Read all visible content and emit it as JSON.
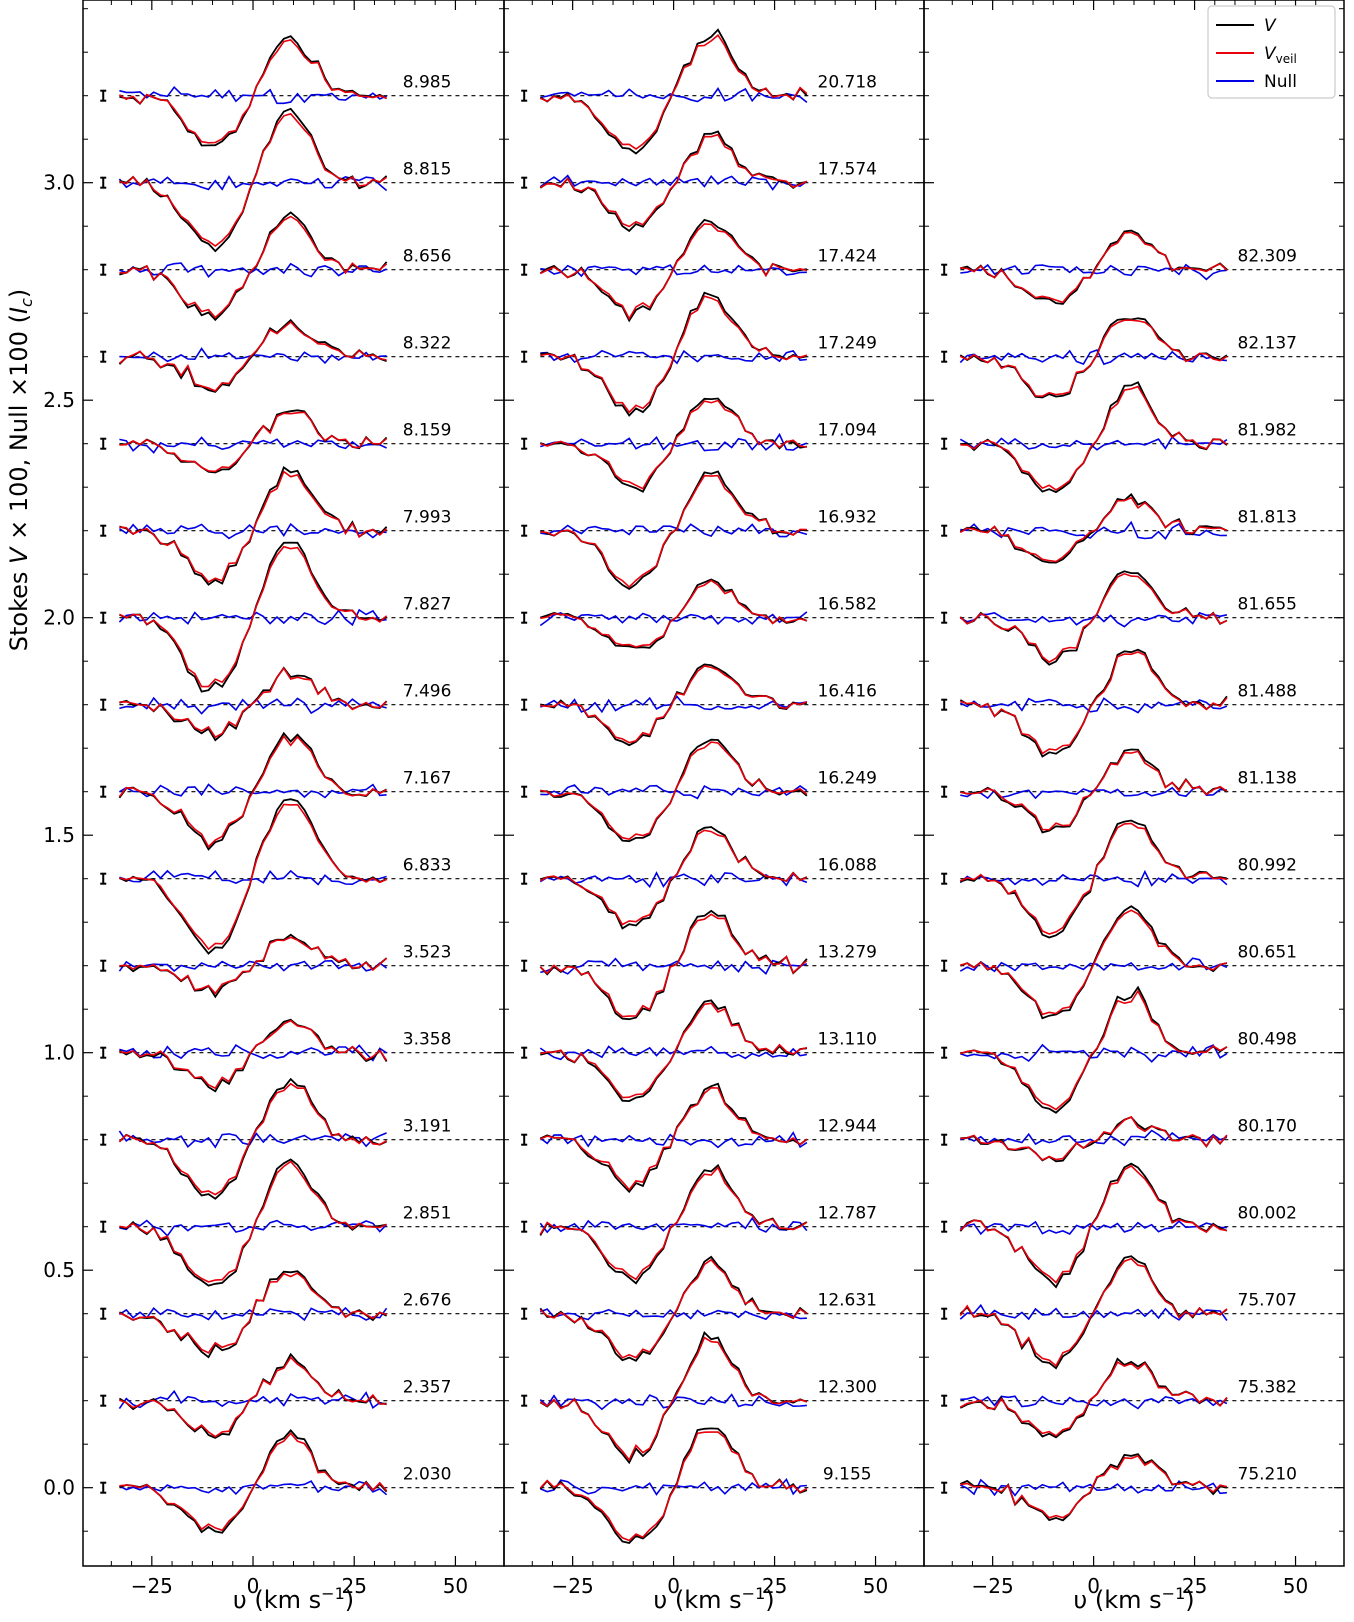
{
  "chart_data": {
    "type": "line",
    "ylabel": "Stokes V × 100, Null ×100 (I_c)",
    "ylabel_parts": {
      "pre": "Stokes ",
      "v": "V",
      "mid": " × 100, Null ×100 (",
      "ic": "I",
      "icsub": "c",
      "post": ")"
    },
    "xlabel": "υ (km s⁻¹)",
    "xlabel_parts": {
      "pre": "υ (km s",
      "sup": "−1",
      "post": ")"
    },
    "x_ticks": [
      -25,
      0,
      25,
      50
    ],
    "x_tick_labels": [
      "−25",
      "0",
      "25",
      "50"
    ],
    "y_ticks": [
      0.0,
      0.5,
      1.0,
      1.5,
      2.0,
      2.5,
      3.0
    ],
    "y_tick_labels": [
      "0.0",
      "0.5",
      "1.0",
      "1.5",
      "2.0",
      "2.5",
      "3.0"
    ],
    "xlim": [
      -42,
      62
    ],
    "ylim": [
      -0.18,
      3.42
    ],
    "offset_step": 0.2,
    "velocity_range": [
      -33,
      33
    ],
    "legend": {
      "placement": "top-right",
      "entries": [
        {
          "label": "V",
          "color": "#000000"
        },
        {
          "label": "V_veil",
          "label_main": "V",
          "label_sub": "veil",
          "color": "#e8000b"
        },
        {
          "label": "Null",
          "color": "#0000e6"
        }
      ]
    },
    "colors": {
      "V": "#000000",
      "V_veil": "#e8000b",
      "Null": "#0000e6"
    },
    "panels": [
      {
        "labels": [
          "2.030",
          "2.357",
          "2.676",
          "2.851",
          "3.191",
          "3.358",
          "3.523",
          "6.833",
          "7.167",
          "7.496",
          "7.827",
          "7.993",
          "8.159",
          "8.322",
          "8.656",
          "8.815",
          "8.985"
        ],
        "amplitudes": [
          0.11,
          0.08,
          0.09,
          0.14,
          0.13,
          0.07,
          0.06,
          0.17,
          0.12,
          0.07,
          0.17,
          0.12,
          0.07,
          0.07,
          0.11,
          0.15,
          0.12
        ],
        "start_index": 0
      },
      {
        "labels": [
          "9.155",
          "12.300",
          "12.631",
          "12.787",
          "12.944",
          "13.110",
          "13.279",
          "16.088",
          "16.249",
          "16.416",
          "16.582",
          "16.932",
          "17.094",
          "17.249",
          "17.424",
          "17.574",
          "20.718"
        ],
        "amplitudes": [
          0.13,
          0.13,
          0.11,
          0.12,
          0.11,
          0.11,
          0.12,
          0.11,
          0.11,
          0.09,
          0.08,
          0.12,
          0.1,
          0.13,
          0.1,
          0.1,
          0.13
        ],
        "start_index": 0
      },
      {
        "labels": [
          "75.210",
          "75.382",
          "75.707",
          "80.002",
          "80.170",
          "80.498",
          "80.651",
          "80.992",
          "81.138",
          "81.488",
          "81.655",
          "81.813",
          "81.982",
          "82.137",
          "82.309"
        ],
        "amplitudes": [
          0.07,
          0.09,
          0.12,
          0.13,
          0.04,
          0.13,
          0.12,
          0.13,
          0.09,
          0.12,
          0.1,
          0.07,
          0.12,
          0.09,
          0.08
        ],
        "start_index": 0
      }
    ]
  }
}
